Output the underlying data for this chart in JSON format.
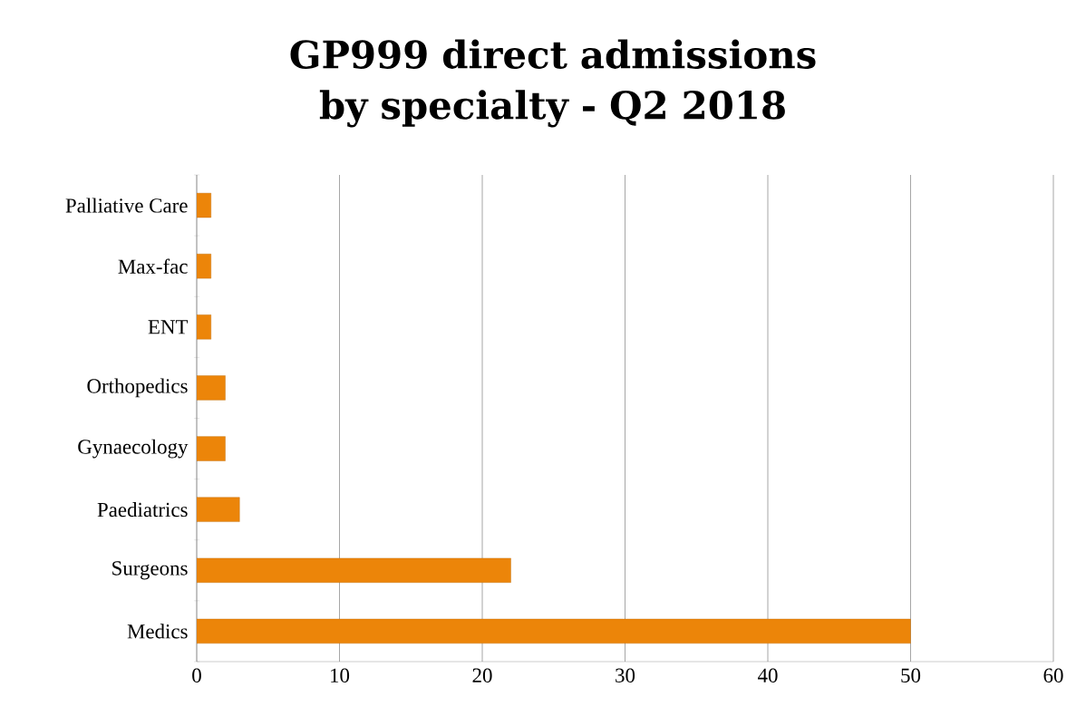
{
  "chart_data": {
    "type": "bar",
    "orientation": "horizontal",
    "title": "GP999 direct admissions by specialty - Q2 2018",
    "categories": [
      "Palliative Care",
      "Max-fac",
      "ENT",
      "Orthopedics",
      "Gynaecology",
      "Paediatrics",
      "Surgeons",
      "Medics"
    ],
    "values": [
      1,
      1,
      1,
      2,
      2,
      3,
      22,
      50
    ],
    "color": "#ec8509",
    "xlim": [
      0,
      60
    ],
    "xticks": [
      0,
      10,
      20,
      30,
      40,
      50,
      60
    ],
    "grid": "x"
  }
}
